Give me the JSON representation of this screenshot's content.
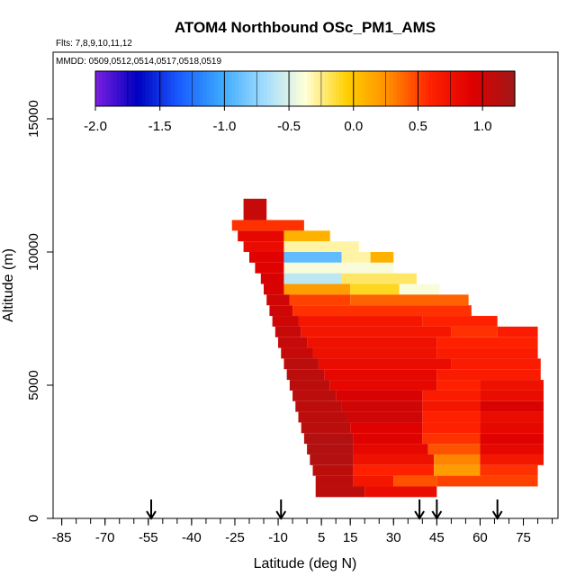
{
  "chart_data": {
    "type": "heatmap",
    "title": "ATOM4 Northbound OSc_PM1_AMS",
    "flights_note": "Flts: 7,8,9,10,11,12",
    "dates_note": "MMDD: 0509,0512,0514,0517,0518,0519",
    "xlabel": "Latitude (deg N)",
    "ylabel": "Altitude (m)",
    "xlim": [
      -88,
      87
    ],
    "ylim": [
      0,
      17500
    ],
    "x_ticks": [
      -85,
      -70,
      -55,
      -40,
      -25,
      -10,
      5,
      15,
      30,
      45,
      60,
      75
    ],
    "x_ticks_labels": [
      "-85",
      "-70",
      "-55",
      "-40",
      "-25",
      "-10",
      "5",
      "15",
      "30",
      "45",
      "60",
      "75"
    ],
    "x_minor_ticks": [
      -85,
      -80,
      -75,
      -70,
      -65,
      -60,
      -55,
      -50,
      -45,
      -40,
      -35,
      -30,
      -25,
      -20,
      -15,
      -10,
      -5,
      0,
      5,
      10,
      15,
      20,
      25,
      30,
      35,
      40,
      45,
      50,
      55,
      60,
      65,
      70,
      75,
      80,
      85
    ],
    "y_ticks": [
      0,
      5000,
      10000,
      15000
    ],
    "y_ticks_labels": [
      "0",
      "5000",
      "10000",
      "15000"
    ],
    "grid": false,
    "colorbar": {
      "min": -2.0,
      "max": 1.25,
      "ticks": [
        -2.0,
        -1.5,
        -1.0,
        -0.5,
        0.0,
        0.5,
        1.0
      ],
      "tick_labels": [
        "-2.0",
        "-1.5",
        "-1.0",
        "-0.5",
        "0.0",
        "0.5",
        "1.0"
      ],
      "colors": [
        "#7b1fe0",
        "#0000c0",
        "#1a5cff",
        "#3aa8ff",
        "#9fdcff",
        "#ffffd8",
        "#ffd000",
        "#ff8c00",
        "#ff2000",
        "#dd0000",
        "#a01818"
      ],
      "placement": "top inside plot"
    },
    "flight_markers_lat": [
      -54,
      -9,
      39,
      45,
      66
    ],
    "profiles": [
      {
        "lat_min": -22,
        "lat_max": -14,
        "alt_min": 11200,
        "alt_max": 12000,
        "value": 1.05
      },
      {
        "lat_min": -26,
        "lat_max": -1,
        "alt_min": 10800,
        "alt_max": 11200,
        "value": 0.55
      },
      {
        "lat_min": -24,
        "lat_max": -8,
        "alt_min": 10400,
        "alt_max": 10800,
        "value": 0.85
      },
      {
        "lat_min": -8,
        "lat_max": 8,
        "alt_min": 10400,
        "alt_max": 10800,
        "value": 0.1
      },
      {
        "lat_min": -22,
        "lat_max": -8,
        "alt_min": 10000,
        "alt_max": 10400,
        "value": 0.8
      },
      {
        "lat_min": -8,
        "lat_max": 18,
        "alt_min": 10000,
        "alt_max": 10400,
        "value": -0.3
      },
      {
        "lat_min": -20,
        "lat_max": -8,
        "alt_min": 9600,
        "alt_max": 10000,
        "value": 0.9
      },
      {
        "lat_min": -8,
        "lat_max": 12,
        "alt_min": 9600,
        "alt_max": 10000,
        "value": -0.9
      },
      {
        "lat_min": 12,
        "lat_max": 22,
        "alt_min": 9600,
        "alt_max": 10000,
        "value": -0.3
      },
      {
        "lat_min": 22,
        "lat_max": 30,
        "alt_min": 9600,
        "alt_max": 10000,
        "value": 0.1
      },
      {
        "lat_min": -18,
        "lat_max": -8,
        "alt_min": 9200,
        "alt_max": 9600,
        "value": 0.9
      },
      {
        "lat_min": -8,
        "lat_max": 30,
        "alt_min": 9200,
        "alt_max": 9600,
        "value": -0.4
      },
      {
        "lat_min": -16,
        "lat_max": -8,
        "alt_min": 8800,
        "alt_max": 9200,
        "value": 0.95
      },
      {
        "lat_min": -8,
        "lat_max": 12,
        "alt_min": 8800,
        "alt_max": 9200,
        "value": -0.6
      },
      {
        "lat_min": 12,
        "lat_max": 38,
        "alt_min": 8800,
        "alt_max": 9200,
        "value": -0.2
      },
      {
        "lat_min": -15,
        "lat_max": -8,
        "alt_min": 8400,
        "alt_max": 8800,
        "value": 0.95
      },
      {
        "lat_min": -8,
        "lat_max": 15,
        "alt_min": 8400,
        "alt_max": 8800,
        "value": 0.2
      },
      {
        "lat_min": 15,
        "lat_max": 32,
        "alt_min": 8400,
        "alt_max": 8800,
        "value": -0.1
      },
      {
        "lat_min": 32,
        "lat_max": 46,
        "alt_min": 8400,
        "alt_max": 8800,
        "value": -0.4
      },
      {
        "lat_min": -14,
        "lat_max": -6,
        "alt_min": 8000,
        "alt_max": 8400,
        "value": 1.0
      },
      {
        "lat_min": -6,
        "lat_max": 15,
        "alt_min": 8000,
        "alt_max": 8400,
        "value": 0.5
      },
      {
        "lat_min": 15,
        "lat_max": 56,
        "alt_min": 8000,
        "alt_max": 8400,
        "value": 0.4
      },
      {
        "lat_min": -13,
        "lat_max": -5,
        "alt_min": 7600,
        "alt_max": 8000,
        "value": 1.0
      },
      {
        "lat_min": -5,
        "lat_max": 57,
        "alt_min": 7600,
        "alt_max": 8000,
        "value": 0.55
      },
      {
        "lat_min": -12,
        "lat_max": -3,
        "alt_min": 7200,
        "alt_max": 7600,
        "value": 1.0
      },
      {
        "lat_min": -3,
        "lat_max": 40,
        "alt_min": 7200,
        "alt_max": 7600,
        "value": 0.7
      },
      {
        "lat_min": 40,
        "lat_max": 66,
        "alt_min": 7200,
        "alt_max": 7600,
        "value": 0.6
      },
      {
        "lat_min": -11,
        "lat_max": -2,
        "alt_min": 6800,
        "alt_max": 7200,
        "value": 1.05
      },
      {
        "lat_min": -2,
        "lat_max": 50,
        "alt_min": 6800,
        "alt_max": 7200,
        "value": 0.7
      },
      {
        "lat_min": 50,
        "lat_max": 66,
        "alt_min": 6800,
        "alt_max": 7200,
        "value": 0.55
      },
      {
        "lat_min": 66,
        "lat_max": 80,
        "alt_min": 6800,
        "alt_max": 7200,
        "value": 0.65
      },
      {
        "lat_min": -10,
        "lat_max": 0,
        "alt_min": 6400,
        "alt_max": 6800,
        "value": 1.05
      },
      {
        "lat_min": 0,
        "lat_max": 45,
        "alt_min": 6400,
        "alt_max": 6800,
        "value": 0.75
      },
      {
        "lat_min": 45,
        "lat_max": 80,
        "alt_min": 6400,
        "alt_max": 6800,
        "value": 0.6
      },
      {
        "lat_min": -9,
        "lat_max": 2,
        "alt_min": 6000,
        "alt_max": 6400,
        "value": 1.05
      },
      {
        "lat_min": 2,
        "lat_max": 45,
        "alt_min": 6000,
        "alt_max": 6400,
        "value": 0.75
      },
      {
        "lat_min": 45,
        "lat_max": 80,
        "alt_min": 6000,
        "alt_max": 6400,
        "value": 0.65
      },
      {
        "lat_min": -8,
        "lat_max": 4,
        "alt_min": 5600,
        "alt_max": 6000,
        "value": 1.1
      },
      {
        "lat_min": 4,
        "lat_max": 50,
        "alt_min": 5600,
        "alt_max": 6000,
        "value": 0.8
      },
      {
        "lat_min": 50,
        "lat_max": 81,
        "alt_min": 5600,
        "alt_max": 6000,
        "value": 0.65
      },
      {
        "lat_min": -7,
        "lat_max": 6,
        "alt_min": 5200,
        "alt_max": 5600,
        "value": 1.1
      },
      {
        "lat_min": 6,
        "lat_max": 45,
        "alt_min": 5200,
        "alt_max": 5600,
        "value": 0.85
      },
      {
        "lat_min": 45,
        "lat_max": 81,
        "alt_min": 5200,
        "alt_max": 5600,
        "value": 0.65
      },
      {
        "lat_min": -6,
        "lat_max": 8,
        "alt_min": 4800,
        "alt_max": 5200,
        "value": 1.1
      },
      {
        "lat_min": 8,
        "lat_max": 45,
        "alt_min": 4800,
        "alt_max": 5200,
        "value": 0.85
      },
      {
        "lat_min": 45,
        "lat_max": 60,
        "alt_min": 4800,
        "alt_max": 5200,
        "value": 0.6
      },
      {
        "lat_min": 60,
        "lat_max": 82,
        "alt_min": 4800,
        "alt_max": 5200,
        "value": 0.75
      },
      {
        "lat_min": -5,
        "lat_max": 10,
        "alt_min": 4400,
        "alt_max": 4800,
        "value": 1.1
      },
      {
        "lat_min": 10,
        "lat_max": 40,
        "alt_min": 4400,
        "alt_max": 4800,
        "value": 0.95
      },
      {
        "lat_min": 40,
        "lat_max": 60,
        "alt_min": 4400,
        "alt_max": 4800,
        "value": 0.65
      },
      {
        "lat_min": 60,
        "lat_max": 82,
        "alt_min": 4400,
        "alt_max": 4800,
        "value": 0.8
      },
      {
        "lat_min": -4,
        "lat_max": 12,
        "alt_min": 4000,
        "alt_max": 4400,
        "value": 1.1
      },
      {
        "lat_min": 12,
        "lat_max": 40,
        "alt_min": 4000,
        "alt_max": 4400,
        "value": 1.0
      },
      {
        "lat_min": 40,
        "lat_max": 60,
        "alt_min": 4000,
        "alt_max": 4400,
        "value": 0.7
      },
      {
        "lat_min": 60,
        "lat_max": 82,
        "alt_min": 4000,
        "alt_max": 4400,
        "value": 0.95
      },
      {
        "lat_min": -3,
        "lat_max": 14,
        "alt_min": 3600,
        "alt_max": 4000,
        "value": 1.1
      },
      {
        "lat_min": 14,
        "lat_max": 40,
        "alt_min": 3600,
        "alt_max": 4000,
        "value": 1.0
      },
      {
        "lat_min": 40,
        "lat_max": 60,
        "alt_min": 3600,
        "alt_max": 4000,
        "value": 0.6
      },
      {
        "lat_min": 60,
        "lat_max": 82,
        "alt_min": 3600,
        "alt_max": 4000,
        "value": 0.8
      },
      {
        "lat_min": -2,
        "lat_max": 15,
        "alt_min": 3200,
        "alt_max": 3600,
        "value": 1.1
      },
      {
        "lat_min": 15,
        "lat_max": 40,
        "alt_min": 3200,
        "alt_max": 3600,
        "value": 0.9
      },
      {
        "lat_min": 40,
        "lat_max": 60,
        "alt_min": 3200,
        "alt_max": 3600,
        "value": 0.6
      },
      {
        "lat_min": 60,
        "lat_max": 82,
        "alt_min": 3200,
        "alt_max": 3600,
        "value": 0.85
      },
      {
        "lat_min": -1,
        "lat_max": 16,
        "alt_min": 2800,
        "alt_max": 3200,
        "value": 1.15
      },
      {
        "lat_min": 16,
        "lat_max": 40,
        "alt_min": 2800,
        "alt_max": 3200,
        "value": 0.9
      },
      {
        "lat_min": 40,
        "lat_max": 60,
        "alt_min": 2800,
        "alt_max": 3200,
        "value": 0.55
      },
      {
        "lat_min": 60,
        "lat_max": 82,
        "alt_min": 2800,
        "alt_max": 3200,
        "value": 0.9
      },
      {
        "lat_min": 0,
        "lat_max": 16,
        "alt_min": 2400,
        "alt_max": 2800,
        "value": 1.15
      },
      {
        "lat_min": 16,
        "lat_max": 42,
        "alt_min": 2400,
        "alt_max": 2800,
        "value": 0.85
      },
      {
        "lat_min": 42,
        "lat_max": 60,
        "alt_min": 2400,
        "alt_max": 2800,
        "value": 0.45
      },
      {
        "lat_min": 60,
        "lat_max": 82,
        "alt_min": 2400,
        "alt_max": 2800,
        "value": 0.85
      },
      {
        "lat_min": 1,
        "lat_max": 16,
        "alt_min": 2000,
        "alt_max": 2400,
        "value": 1.15
      },
      {
        "lat_min": 16,
        "lat_max": 44,
        "alt_min": 2000,
        "alt_max": 2400,
        "value": 0.75
      },
      {
        "lat_min": 44,
        "lat_max": 60,
        "alt_min": 2000,
        "alt_max": 2400,
        "value": 0.3
      },
      {
        "lat_min": 60,
        "lat_max": 82,
        "alt_min": 2000,
        "alt_max": 2400,
        "value": 0.7
      },
      {
        "lat_min": 2,
        "lat_max": 16,
        "alt_min": 1600,
        "alt_max": 2000,
        "value": 1.1
      },
      {
        "lat_min": 16,
        "lat_max": 44,
        "alt_min": 1600,
        "alt_max": 2000,
        "value": 0.6
      },
      {
        "lat_min": 44,
        "lat_max": 60,
        "alt_min": 1600,
        "alt_max": 2000,
        "value": 0.2
      },
      {
        "lat_min": 60,
        "lat_max": 80,
        "alt_min": 1600,
        "alt_max": 2000,
        "value": 0.55
      },
      {
        "lat_min": 3,
        "lat_max": 16,
        "alt_min": 1200,
        "alt_max": 1600,
        "value": 1.1
      },
      {
        "lat_min": 16,
        "lat_max": 30,
        "alt_min": 1200,
        "alt_max": 1600,
        "value": 0.7
      },
      {
        "lat_min": 30,
        "lat_max": 45,
        "alt_min": 1200,
        "alt_max": 1600,
        "value": 0.45
      },
      {
        "lat_min": 45,
        "lat_max": 80,
        "alt_min": 1200,
        "alt_max": 1600,
        "value": 0.5
      },
      {
        "lat_min": 3,
        "lat_max": 20,
        "alt_min": 800,
        "alt_max": 1200,
        "value": 1.1
      },
      {
        "lat_min": 20,
        "lat_max": 45,
        "alt_min": 800,
        "alt_max": 1200,
        "value": 0.8
      }
    ]
  }
}
